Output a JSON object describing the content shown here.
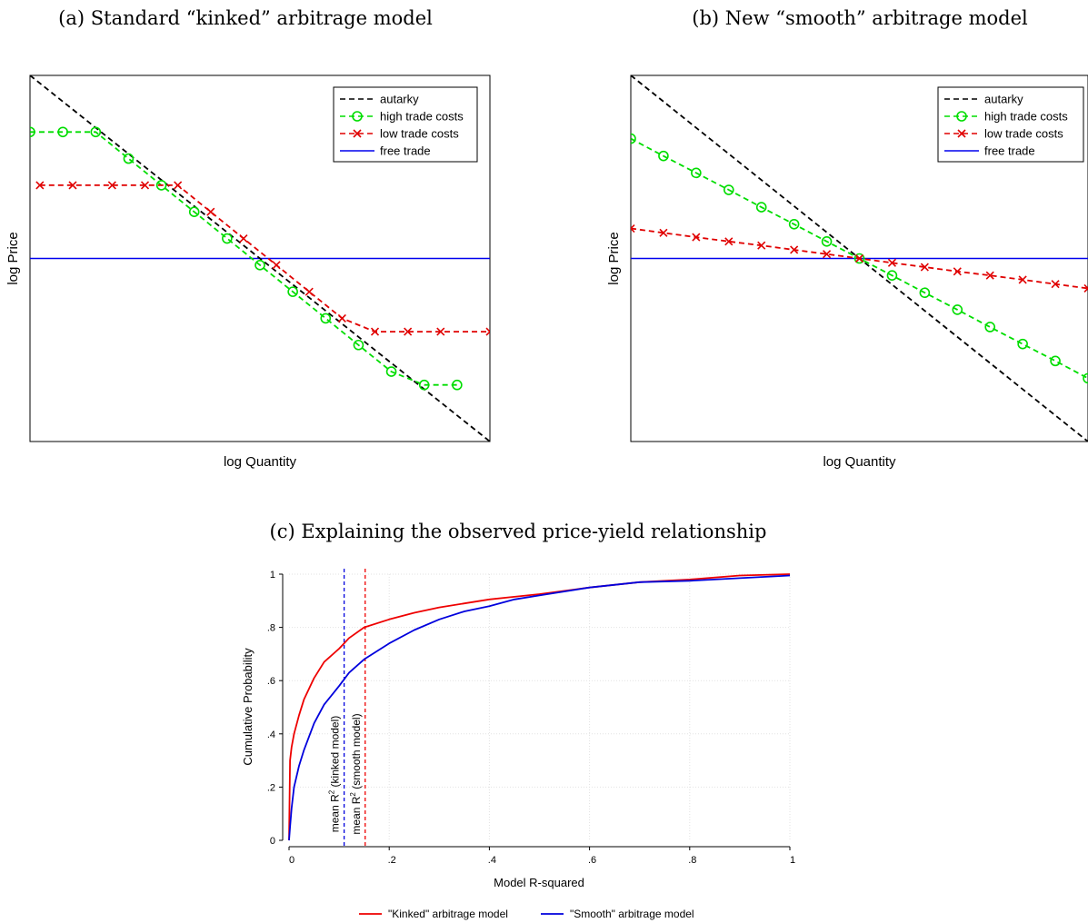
{
  "chart_data": [
    {
      "panel": "a",
      "type": "line",
      "title": "(a) Standard “kinked” arbitrage model",
      "xlabel": "log Quantity",
      "ylabel": "log Price",
      "ticks": "none",
      "legend_position": "top-right",
      "xlim": [
        0,
        14
      ],
      "ylim": [
        -5.5,
        5.5
      ],
      "series": [
        {
          "name": "autarky",
          "color": "#000000",
          "dash": "dashed",
          "marker": "none",
          "x": [
            0,
            14
          ],
          "y": [
            5.5,
            -5.5
          ]
        },
        {
          "name": "high trade costs",
          "color": "#00dd00",
          "dash": "dashed",
          "marker": "circle",
          "x": [
            0,
            1,
            2,
            3,
            4,
            5,
            6,
            7,
            8,
            9,
            10,
            11,
            12,
            13
          ],
          "y": [
            3.8,
            3.8,
            3.8,
            3.0,
            2.2,
            1.4,
            0.6,
            -0.2,
            -1.0,
            -1.8,
            -2.6,
            -3.4,
            -3.8,
            -3.8
          ]
        },
        {
          "name": "low trade costs",
          "color": "#e00000",
          "dash": "dashed",
          "marker": "x",
          "x": [
            0.3,
            1.3,
            2.5,
            3.5,
            4.5,
            5.5,
            6.5,
            7.5,
            8.5,
            9.5,
            10.5,
            11.5,
            12.5,
            14
          ],
          "y": [
            2.2,
            2.2,
            2.2,
            2.2,
            2.2,
            1.4,
            0.6,
            -0.2,
            -1.0,
            -1.8,
            -2.2,
            -2.2,
            -2.2,
            -2.2
          ]
        },
        {
          "name": "free trade",
          "color": "#0000ee",
          "dash": "solid",
          "marker": "none",
          "x": [
            0,
            14
          ],
          "y": [
            0,
            0
          ]
        }
      ]
    },
    {
      "panel": "b",
      "type": "line",
      "title": "(b) New “smooth” arbitrage model",
      "xlabel": "log Quantity",
      "ylabel": "log Price",
      "ticks": "none",
      "legend_position": "top-right",
      "xlim": [
        -7,
        7
      ],
      "ylim": [
        -5.5,
        5.5
      ],
      "series": [
        {
          "name": "autarky",
          "color": "#000000",
          "dash": "dashed",
          "marker": "none",
          "x": [
            -7,
            7
          ],
          "y": [
            5.5,
            -5.5
          ]
        },
        {
          "name": "high trade costs",
          "color": "#00dd00",
          "dash": "dashed",
          "marker": "circle",
          "x": [
            -7,
            -6,
            -5,
            -4,
            -3,
            -2,
            -1,
            0,
            1,
            2,
            3,
            4,
            5,
            6,
            7
          ],
          "y": [
            3.6,
            3.08,
            2.57,
            2.06,
            1.54,
            1.03,
            0.51,
            0,
            -0.51,
            -1.03,
            -1.54,
            -2.06,
            -2.57,
            -3.08,
            -3.6
          ]
        },
        {
          "name": "low trade costs",
          "color": "#e00000",
          "dash": "dashed",
          "marker": "x",
          "x": [
            -7,
            -6,
            -5,
            -4,
            -3,
            -2,
            -1,
            0,
            1,
            2,
            3,
            4,
            5,
            6,
            7
          ],
          "y": [
            0.9,
            0.77,
            0.64,
            0.51,
            0.39,
            0.26,
            0.13,
            0,
            -0.13,
            -0.26,
            -0.39,
            -0.51,
            -0.64,
            -0.77,
            -0.9
          ]
        },
        {
          "name": "free trade",
          "color": "#0000ee",
          "dash": "solid",
          "marker": "none",
          "x": [
            -7,
            7
          ],
          "y": [
            0,
            0
          ]
        }
      ]
    },
    {
      "panel": "c",
      "type": "line",
      "title": "(c) Explaining the observed price-yield relationship",
      "xlabel": "Model R-squared",
      "ylabel": "Cumulative Probability",
      "xlim": [
        0,
        1
      ],
      "ylim": [
        0,
        1
      ],
      "xticks": [
        0,
        0.2,
        0.4,
        0.6,
        0.8,
        1
      ],
      "xtick_labels": [
        "0",
        ".2",
        ".4",
        ".6",
        ".8",
        "1"
      ],
      "yticks": [
        0,
        0.2,
        0.4,
        0.6,
        0.8,
        1
      ],
      "ytick_labels": [
        "0",
        ".2",
        ".4",
        ".6",
        ".8",
        "1"
      ],
      "grid": true,
      "legend_position": "bottom",
      "series": [
        {
          "name": "\"Kinked\" arbitrage model",
          "color": "#ee0000",
          "x": [
            0,
            0.002,
            0.005,
            0.01,
            0.02,
            0.03,
            0.05,
            0.07,
            0.1,
            0.12,
            0.15,
            0.2,
            0.25,
            0.3,
            0.35,
            0.4,
            0.45,
            0.5,
            0.6,
            0.7,
            0.8,
            0.9,
            1.0
          ],
          "y": [
            0,
            0.3,
            0.35,
            0.4,
            0.47,
            0.53,
            0.61,
            0.67,
            0.72,
            0.76,
            0.8,
            0.83,
            0.855,
            0.875,
            0.89,
            0.905,
            0.915,
            0.925,
            0.95,
            0.97,
            0.98,
            0.995,
            1.0
          ]
        },
        {
          "name": "\"Smooth\" arbitrage model",
          "color": "#0000dd",
          "x": [
            0,
            0.002,
            0.005,
            0.01,
            0.02,
            0.03,
            0.05,
            0.07,
            0.1,
            0.12,
            0.15,
            0.2,
            0.25,
            0.3,
            0.35,
            0.4,
            0.45,
            0.5,
            0.6,
            0.7,
            0.8,
            0.9,
            1.0
          ],
          "y": [
            0,
            0.05,
            0.12,
            0.2,
            0.28,
            0.34,
            0.44,
            0.51,
            0.58,
            0.63,
            0.68,
            0.74,
            0.79,
            0.83,
            0.86,
            0.88,
            0.905,
            0.92,
            0.95,
            0.97,
            0.975,
            0.985,
            0.995
          ]
        }
      ],
      "vlines": [
        {
          "x": 0.11,
          "color": "#0000dd",
          "label": "mean R",
          "sup": "2",
          "tail": " (kinked model)"
        },
        {
          "x": 0.152,
          "color": "#ee0000",
          "label": "mean R",
          "sup": "2",
          "tail": " (smooth model)"
        }
      ]
    }
  ]
}
